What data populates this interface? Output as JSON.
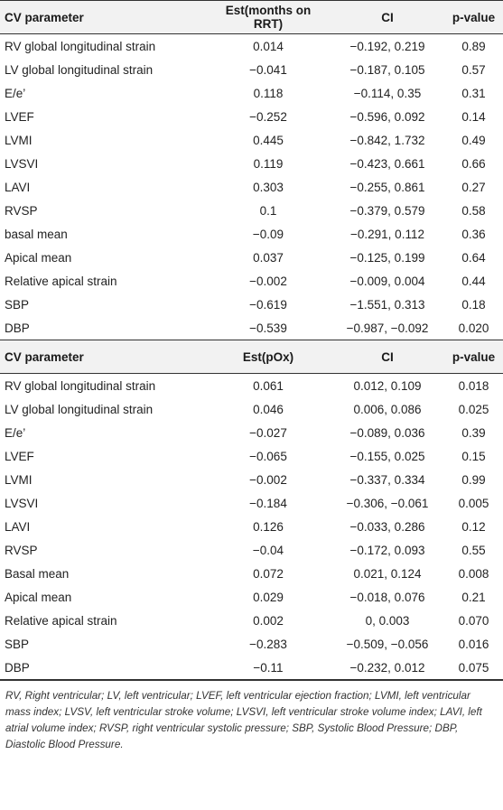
{
  "table1": {
    "headers": [
      "CV parameter",
      "Est(months on RRT)",
      "CI",
      "p-value"
    ],
    "rows": [
      [
        "RV global longitudinal strain",
        "0.014",
        "−0.192, 0.219",
        "0.89"
      ],
      [
        "LV global longitudinal strain",
        "−0.041",
        "−0.187, 0.105",
        "0.57"
      ],
      [
        "E/e’",
        "0.118",
        "−0.114, 0.35",
        "0.31"
      ],
      [
        "LVEF",
        "−0.252",
        "−0.596, 0.092",
        "0.14"
      ],
      [
        "LVMI",
        "0.445",
        "−0.842, 1.732",
        "0.49"
      ],
      [
        "LVSVI",
        "0.119",
        "−0.423, 0.661",
        "0.66"
      ],
      [
        "LAVI",
        "0.303",
        "−0.255, 0.861",
        "0.27"
      ],
      [
        "RVSP",
        "0.1",
        "−0.379, 0.579",
        "0.58"
      ],
      [
        "basal mean",
        "−0.09",
        "−0.291, 0.112",
        "0.36"
      ],
      [
        "Apical mean",
        "0.037",
        "−0.125, 0.199",
        "0.64"
      ],
      [
        "Relative apical strain",
        "−0.002",
        "−0.009, 0.004",
        "0.44"
      ],
      [
        "SBP",
        "−0.619",
        "−1.551, 0.313",
        "0.18"
      ],
      [
        "DBP",
        "−0.539",
        "−0.987, −0.092",
        "0.020"
      ]
    ]
  },
  "table2": {
    "headers": [
      "CV parameter",
      "Est(pOx)",
      "CI",
      "p-value"
    ],
    "rows": [
      [
        "RV global longitudinal strain",
        "0.061",
        "0.012, 0.109",
        "0.018"
      ],
      [
        "LV global longitudinal strain",
        "0.046",
        "0.006, 0.086",
        "0.025"
      ],
      [
        "E/e’",
        "−0.027",
        "−0.089, 0.036",
        "0.39"
      ],
      [
        "LVEF",
        "−0.065",
        "−0.155, 0.025",
        "0.15"
      ],
      [
        "LVMI",
        "−0.002",
        "−0.337, 0.334",
        "0.99"
      ],
      [
        "LVSVI",
        "−0.184",
        "−0.306, −0.061",
        "0.005"
      ],
      [
        "LAVI",
        "0.126",
        "−0.033, 0.286",
        "0.12"
      ],
      [
        "RVSP",
        "−0.04",
        "−0.172, 0.093",
        "0.55"
      ],
      [
        "Basal mean",
        "0.072",
        "0.021, 0.124",
        "0.008"
      ],
      [
        "Apical mean",
        "0.029",
        "−0.018, 0.076",
        "0.21"
      ],
      [
        "Relative apical strain",
        "0.002",
        "0, 0.003",
        "0.070"
      ],
      [
        "SBP",
        "−0.283",
        "−0.509, −0.056",
        "0.016"
      ],
      [
        "DBP",
        "−0.11",
        "−0.232, 0.012",
        "0.075"
      ]
    ]
  },
  "footnote": "RV, Right ventricular; LV, left ventricular; LVEF, left ventricular ejection fraction; LVMI, left ventricular mass index; LVSV, left ventricular stroke volume; LVSVI, left ventricular stroke volume index; LAVI, left atrial volume index; RVSP, right ventricular systolic pressure; SBP, Systolic Blood Pressure; DBP, Diastolic Blood Pressure."
}
